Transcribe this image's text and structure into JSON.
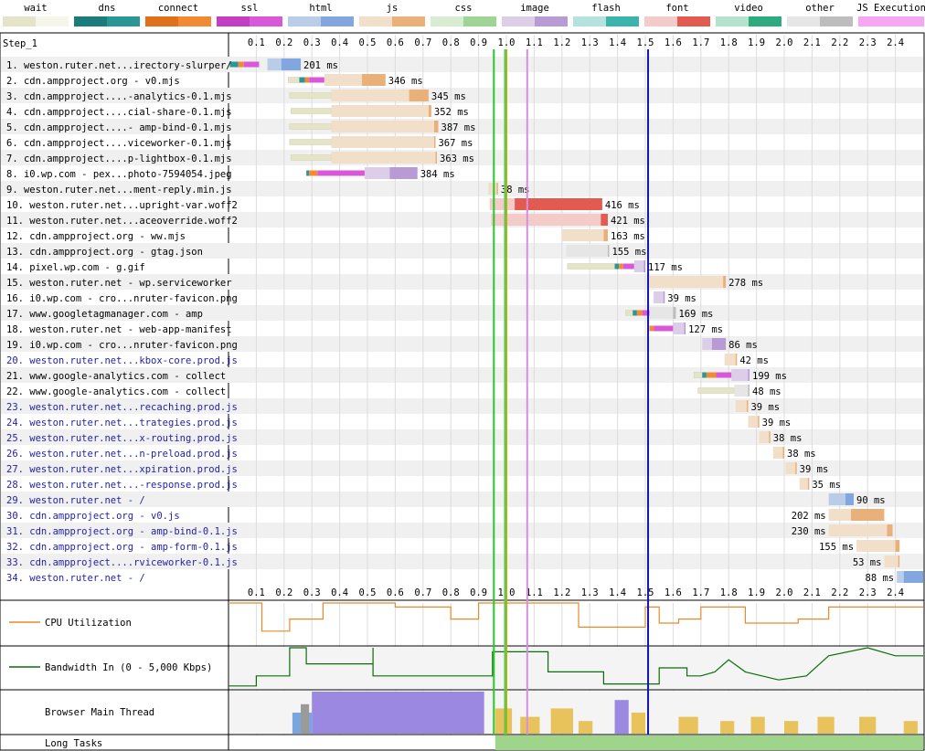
{
  "legend": [
    {
      "label": "wait",
      "colors": [
        "#e6e4c8",
        "#f6f5e9"
      ]
    },
    {
      "label": "dns",
      "colors": [
        "#1b7c7c",
        "#2a9696"
      ]
    },
    {
      "label": "connect",
      "colors": [
        "#e0701a",
        "#f28a33"
      ]
    },
    {
      "label": "ssl",
      "colors": [
        "#c23ec2",
        "#d958d9"
      ]
    },
    {
      "label": "html",
      "colors": [
        "#b9cde8",
        "#82a7e0"
      ]
    },
    {
      "label": "js",
      "colors": [
        "#f2dfc9",
        "#eab07a"
      ]
    },
    {
      "label": "css",
      "colors": [
        "#d7ecd1",
        "#9ed595"
      ]
    },
    {
      "label": "image",
      "colors": [
        "#dccde9",
        "#b89ad4"
      ]
    },
    {
      "label": "flash",
      "colors": [
        "#b6e2de",
        "#3bb5ac"
      ]
    },
    {
      "label": "font",
      "colors": [
        "#f3cbc8",
        "#e35a50"
      ]
    },
    {
      "label": "video",
      "colors": [
        "#b4e2cc",
        "#2eaa7f"
      ]
    },
    {
      "label": "other",
      "colors": [
        "#e6e6e6",
        "#bdbdbd"
      ]
    },
    {
      "label": "JS Execution",
      "colors": [
        "#f6a6f2",
        "#f6a6f2"
      ]
    }
  ],
  "step_label": "Step_1",
  "markers": [
    {
      "name": "start-render",
      "time": 0.955,
      "color": "#28c828"
    },
    {
      "name": "dom-interactive",
      "time": 1.0,
      "color": "#b4b400"
    },
    {
      "name": "dom-content-loaded",
      "time": 0.995,
      "color": "#58c858"
    },
    {
      "name": "first-contentful-paint",
      "time": 1.075,
      "color": "#d490e0"
    },
    {
      "name": "on-load",
      "time": 1.51,
      "color": "#1414b4"
    }
  ],
  "chart_data": {
    "type": "waterfall",
    "xlim": [
      0,
      2.5
    ],
    "xticks": [
      "0.1",
      "0.2",
      "0.3",
      "0.4",
      "0.5",
      "0.6",
      "0.7",
      "0.8",
      "0.9",
      "1.0",
      "1.1",
      "1.2",
      "1.3",
      "1.4",
      "1.5",
      "1.6",
      "1.7",
      "1.8",
      "1.9",
      "2.0",
      "2.1",
      "2.2",
      "2.3",
      "2.4"
    ],
    "requests": [
      {
        "label": "1. weston.ruter.net...irectory-slurper/",
        "type": "html",
        "start": 0.005,
        "dns": [
          0.005,
          0.035
        ],
        "connect": [
          0.035,
          0.055
        ],
        "ssl": [
          0.055,
          0.11
        ],
        "ttfb": [
          0.14,
          0.19
        ],
        "dl": [
          0.19,
          0.26
        ],
        "ms": "201 ms",
        "label_side": "right",
        "blue": false
      },
      {
        "label": "2. cdn.ampproject.org - v0.mjs",
        "type": "js",
        "start": 0.215,
        "dns": [
          0.255,
          0.275
        ],
        "connect": [
          0.275,
          0.29
        ],
        "ssl": [
          0.29,
          0.345
        ],
        "ttfb": [
          0.345,
          0.48
        ],
        "dl": [
          0.48,
          0.565
        ],
        "ms": "346 ms",
        "label_side": "right",
        "blue": false
      },
      {
        "label": "3. cdn.ampproject....-analytics-0.1.mjs",
        "type": "js",
        "start": 0.22,
        "ttfb": [
          0.37,
          0.65
        ],
        "dl": [
          0.65,
          0.72
        ],
        "ms": "345 ms",
        "label_side": "right",
        "blue": false
      },
      {
        "label": "4. cdn.ampproject....cial-share-0.1.mjs",
        "type": "js",
        "start": 0.225,
        "ttfb": [
          0.37,
          0.72
        ],
        "dl": [
          0.72,
          0.73
        ],
        "ms": "352 ms",
        "label_side": "right",
        "blue": false
      },
      {
        "label": "5. cdn.ampproject....- amp-bind-0.1.mjs",
        "type": "js",
        "start": 0.22,
        "ttfb": [
          0.37,
          0.74
        ],
        "dl": [
          0.74,
          0.755
        ],
        "ms": "387 ms",
        "label_side": "right",
        "blue": false
      },
      {
        "label": "6. cdn.ampproject....viceworker-0.1.mjs",
        "type": "js",
        "start": 0.22,
        "ttfb": [
          0.37,
          0.74
        ],
        "dl": [
          0.74,
          0.745
        ],
        "ms": "367 ms",
        "label_side": "right",
        "blue": false
      },
      {
        "label": "7. cdn.ampproject....p-lightbox-0.1.mjs",
        "type": "js",
        "start": 0.225,
        "ttfb": [
          0.37,
          0.745
        ],
        "dl": [
          0.745,
          0.75
        ],
        "ms": "363 ms",
        "label_side": "right",
        "blue": false
      },
      {
        "label": "8. i0.wp.com - pex...photo-7594054.jpeg",
        "type": "image",
        "start": 0.28,
        "dns": [
          0.28,
          0.29
        ],
        "connect": [
          0.29,
          0.32
        ],
        "ssl": [
          0.32,
          0.49
        ],
        "ttfb": [
          0.49,
          0.58
        ],
        "dl": [
          0.58,
          0.68
        ],
        "ms": "384 ms",
        "label_side": "right",
        "blue": false
      },
      {
        "label": "9. weston.ruter.net...ment-reply.min.js",
        "type": "js",
        "start": 0.935,
        "ttfb": [
          0.935,
          0.965
        ],
        "dl": [
          0.965,
          0.97
        ],
        "ms": "38 ms",
        "label_side": "right",
        "blue": false
      },
      {
        "label": "10. weston.ruter.net...upright-var.woff2",
        "type": "font",
        "start": 0.94,
        "ttfb": [
          0.94,
          1.03
        ],
        "dl": [
          1.03,
          1.345
        ],
        "ms": "416 ms",
        "label_side": "right",
        "blue": false
      },
      {
        "label": "11. weston.ruter.net...aceoverride.woff2",
        "type": "font",
        "start": 0.945,
        "ttfb": [
          0.945,
          1.34
        ],
        "dl": [
          1.34,
          1.365
        ],
        "ms": "421 ms",
        "label_side": "right",
        "blue": false
      },
      {
        "label": "12. cdn.ampproject.org - ww.mjs",
        "type": "js",
        "start": 1.2,
        "ttfb": [
          1.2,
          1.35
        ],
        "dl": [
          1.35,
          1.365
        ],
        "ms": "163 ms",
        "label_side": "right",
        "blue": false
      },
      {
        "label": "13. cdn.ampproject.org - gtag.json",
        "type": "other",
        "start": 1.215,
        "ttfb": [
          1.215,
          1.365
        ],
        "dl": [
          1.365,
          1.37
        ],
        "ms": "155 ms",
        "label_side": "right",
        "blue": false
      },
      {
        "label": "14. pixel.wp.com - g.gif",
        "type": "image",
        "start": 1.22,
        "dns": [
          1.39,
          1.405
        ],
        "connect": [
          1.405,
          1.42
        ],
        "ssl": [
          1.42,
          1.46
        ],
        "ttfb": [
          1.46,
          1.495
        ],
        "dl": [
          1.495,
          1.5
        ],
        "ms": "117 ms",
        "label_side": "right",
        "blue": false
      },
      {
        "label": "15. weston.ruter.net - wp.serviceworker",
        "type": "js",
        "start": 1.515,
        "ttfb": [
          1.515,
          1.78
        ],
        "dl": [
          1.78,
          1.79
        ],
        "ms": "278 ms",
        "label_side": "right",
        "blue": false
      },
      {
        "label": "16. i0.wp.com - cro...nruter-favicon.png",
        "type": "image",
        "start": 1.53,
        "ttfb": [
          1.53,
          1.565
        ],
        "dl": [
          1.565,
          1.57
        ],
        "ms": "39 ms",
        "label_side": "right",
        "blue": false
      },
      {
        "label": "17. www.googletagmanager.com - amp",
        "type": "other",
        "start": 1.43,
        "dns": [
          1.455,
          1.47
        ],
        "connect": [
          1.47,
          1.49
        ],
        "ssl": [
          1.49,
          1.515
        ],
        "ttfb": [
          1.515,
          1.6
        ],
        "dl": [
          1.6,
          1.61
        ],
        "ms": "169 ms",
        "label_side": "right",
        "blue": false
      },
      {
        "label": "18. weston.ruter.net - web-app-manifest",
        "type": "image",
        "start": 1.515,
        "connect": [
          1.515,
          1.53
        ],
        "ssl": [
          1.53,
          1.6
        ],
        "ttfb": [
          1.6,
          1.64
        ],
        "dl": [
          1.64,
          1.645
        ],
        "ms": "127 ms",
        "label_side": "right",
        "blue": false
      },
      {
        "label": "19. i0.wp.com - cro...nruter-favicon.png",
        "type": "image",
        "start": 1.705,
        "ttfb": [
          1.705,
          1.74
        ],
        "dl": [
          1.74,
          1.79
        ],
        "ms": "86 ms",
        "label_side": "right",
        "blue": false
      },
      {
        "label": "20. weston.ruter.net...kbox-core.prod.js",
        "type": "js",
        "start": 1.785,
        "ttfb": [
          1.785,
          1.825
        ],
        "dl": [
          1.825,
          1.83
        ],
        "ms": "42 ms",
        "label_side": "right",
        "blue": true
      },
      {
        "label": "21. www.google-analytics.com - collect",
        "type": "image",
        "start": 1.675,
        "dns": [
          1.705,
          1.72
        ],
        "connect": [
          1.72,
          1.755
        ],
        "ssl": [
          1.755,
          1.81
        ],
        "ttfb": [
          1.81,
          1.87
        ],
        "dl": [
          1.87,
          1.875
        ],
        "ms": "199 ms",
        "label_side": "right",
        "blue": false
      },
      {
        "label": "22. www.google-analytics.com - collect",
        "type": "other",
        "start": 1.69,
        "ttfb": [
          1.82,
          1.87
        ],
        "dl": [
          1.87,
          1.875
        ],
        "ms": "48 ms",
        "label_side": "right",
        "blue": false
      },
      {
        "label": "23. weston.ruter.net...recaching.prod.js",
        "type": "js",
        "start": 1.825,
        "ttfb": [
          1.825,
          1.865
        ],
        "dl": [
          1.865,
          1.87
        ],
        "ms": "39 ms",
        "label_side": "right",
        "blue": true
      },
      {
        "label": "24. weston.ruter.net...trategies.prod.js",
        "type": "js",
        "start": 1.87,
        "ttfb": [
          1.87,
          1.905
        ],
        "dl": [
          1.905,
          1.91
        ],
        "ms": "39 ms",
        "label_side": "right",
        "blue": true
      },
      {
        "label": "25. weston.ruter.net...x-routing.prod.js",
        "type": "js",
        "start": 1.91,
        "ttfb": [
          1.91,
          1.945
        ],
        "dl": [
          1.945,
          1.95
        ],
        "ms": "38 ms",
        "label_side": "right",
        "blue": true
      },
      {
        "label": "26. weston.ruter.net...n-preload.prod.js",
        "type": "js",
        "start": 1.96,
        "ttfb": [
          1.96,
          1.995
        ],
        "dl": [
          1.995,
          2.0
        ],
        "ms": "38 ms",
        "label_side": "right",
        "blue": true
      },
      {
        "label": "27. weston.ruter.net...xpiration.prod.js",
        "type": "js",
        "start": 2.005,
        "ttfb": [
          2.005,
          2.04
        ],
        "dl": [
          2.04,
          2.045
        ],
        "ms": "39 ms",
        "label_side": "right",
        "blue": true
      },
      {
        "label": "28. weston.ruter.net...-response.prod.js",
        "type": "js",
        "start": 2.055,
        "ttfb": [
          2.055,
          2.085
        ],
        "dl": [
          2.085,
          2.09
        ],
        "ms": "35 ms",
        "label_side": "right",
        "blue": true
      },
      {
        "label": "29. weston.ruter.net - /",
        "type": "html",
        "start": 2.16,
        "ttfb": [
          2.16,
          2.22
        ],
        "dl": [
          2.22,
          2.25
        ],
        "ms": "90 ms",
        "label_side": "right",
        "blue": true
      },
      {
        "label": "30. cdn.ampproject.org - v0.js",
        "type": "js",
        "start": 2.16,
        "ttfb": [
          2.16,
          2.24
        ],
        "dl": [
          2.24,
          2.36
        ],
        "ms": "202 ms",
        "label_side": "left",
        "blue": true
      },
      {
        "label": "31. cdn.ampproject.org - amp-bind-0.1.js",
        "type": "js",
        "start": 2.16,
        "ttfb": [
          2.16,
          2.37
        ],
        "dl": [
          2.37,
          2.39
        ],
        "ms": "230 ms",
        "label_side": "left",
        "blue": true
      },
      {
        "label": "32. cdn.ampproject.org - amp-form-0.1.js",
        "type": "js",
        "start": 2.26,
        "ttfb": [
          2.26,
          2.4
        ],
        "dl": [
          2.4,
          2.415
        ],
        "ms": "155 ms",
        "label_side": "left",
        "blue": true
      },
      {
        "label": "33. cdn.ampproject....rviceworker-0.1.js",
        "type": "js",
        "start": 2.36,
        "ttfb": [
          2.36,
          2.41
        ],
        "dl": [
          2.41,
          2.415
        ],
        "ms": "53 ms",
        "label_side": "left",
        "blue": true
      },
      {
        "label": "34. weston.ruter.net - /",
        "type": "html",
        "start": 2.405,
        "ttfb": [
          2.405,
          2.43
        ],
        "dl": [
          2.43,
          2.5
        ],
        "ms": "88 ms",
        "label_side": "left",
        "blue": true
      }
    ],
    "cpu_utilization": {
      "label": "CPU Utilization",
      "color": "#e88a2a",
      "points": [
        [
          0,
          1.0
        ],
        [
          0.12,
          1.0
        ],
        [
          0.12,
          0.3
        ],
        [
          0.22,
          0.3
        ],
        [
          0.22,
          0.6
        ],
        [
          0.34,
          0.6
        ],
        [
          0.34,
          1.0
        ],
        [
          0.6,
          1.0
        ],
        [
          0.6,
          0.9
        ],
        [
          0.8,
          0.9
        ],
        [
          0.8,
          0.6
        ],
        [
          0.9,
          0.6
        ],
        [
          0.9,
          1.0
        ],
        [
          1.26,
          1.0
        ],
        [
          1.26,
          0.4
        ],
        [
          1.5,
          0.4
        ],
        [
          1.5,
          0.9
        ],
        [
          1.55,
          0.9
        ],
        [
          1.55,
          0.5
        ],
        [
          1.62,
          0.5
        ],
        [
          1.62,
          0.6
        ],
        [
          1.7,
          0.6
        ],
        [
          1.7,
          0.9
        ],
        [
          1.86,
          0.9
        ],
        [
          1.86,
          0.5
        ],
        [
          2.05,
          0.5
        ],
        [
          2.05,
          0.6
        ],
        [
          2.16,
          0.6
        ],
        [
          2.16,
          0.9
        ],
        [
          2.5,
          0.9
        ]
      ]
    },
    "bandwidth": {
      "label": "Bandwidth In (0 - 5,000 Kbps)",
      "color": "#0a6e0a",
      "points": [
        [
          0,
          0.05
        ],
        [
          0.1,
          0.05
        ],
        [
          0.1,
          0.3
        ],
        [
          0.22,
          0.3
        ],
        [
          0.22,
          1.0
        ],
        [
          0.28,
          1.0
        ],
        [
          0.28,
          0.6
        ],
        [
          0.52,
          0.6
        ],
        [
          0.52,
          1.0
        ],
        [
          0.52,
          0.3
        ],
        [
          0.95,
          0.3
        ],
        [
          0.95,
          0.9
        ],
        [
          1.15,
          0.9
        ],
        [
          1.15,
          0.4
        ],
        [
          1.35,
          0.4
        ],
        [
          1.35,
          0.1
        ],
        [
          1.55,
          0.1
        ],
        [
          1.55,
          0.5
        ],
        [
          1.65,
          0.5
        ],
        [
          1.65,
          0.3
        ],
        [
          1.7,
          0.3
        ],
        [
          1.75,
          0.4
        ],
        [
          1.8,
          0.7
        ],
        [
          1.86,
          0.4
        ],
        [
          1.98,
          0.2
        ],
        [
          2.08,
          0.3
        ],
        [
          2.16,
          0.8
        ],
        [
          2.3,
          1.0
        ],
        [
          2.4,
          0.8
        ],
        [
          2.5,
          0.8
        ]
      ]
    },
    "main_thread": {
      "label": "Browser Main Thread"
    },
    "long_tasks": {
      "label": "Long Tasks",
      "start": 0.96,
      "end": 2.5,
      "color": "#9ed58a"
    }
  }
}
